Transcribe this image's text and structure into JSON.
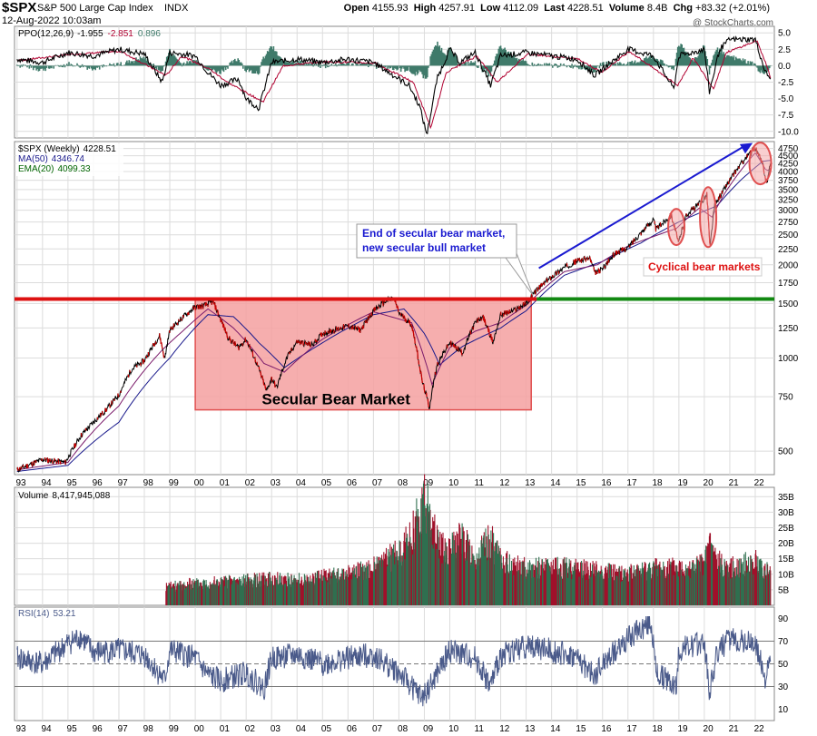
{
  "header": {
    "symbol": "$SPX",
    "name": "S&P 500 Large Cap Index",
    "exchange": "INDX",
    "date": "12-Aug-2022 10:03am",
    "credit": "@ StockCharts.com",
    "quote": {
      "open_label": "Open",
      "open": "4155.93",
      "high_label": "High",
      "high": "4257.91",
      "low_label": "Low",
      "low": "4112.09",
      "last_label": "Last",
      "last": "4228.51",
      "volume_label": "Volume",
      "volume": "8.4B",
      "chg_label": "Chg",
      "chg": "+83.32 (+2.01%)"
    }
  },
  "colors": {
    "price": "#000000",
    "down": "#cc0000",
    "ma50": "#1a1a8c",
    "ema20": "#006400",
    "ppo_line": "#000000",
    "ppo_signal": "#b00030",
    "ppo_hist": "#3f7a6a",
    "resistance": "#dd1111",
    "support": "#118811",
    "zone_fill": "#f4a0a0",
    "zone_edge": "#e05050",
    "arrow": "#1a1ad0",
    "note_blue": "#1a1ad0",
    "note_red": "#dd1111",
    "vol_up": "#2f6f4f",
    "vol_down": "#a0102a",
    "rsi": "#4a5a8a"
  },
  "chart_data": [
    {
      "id": "ppo",
      "type": "line",
      "legend": [
        {
          "text": "PPO(12,26,9)",
          "value": "-1.955",
          "color": "#000000"
        },
        {
          "text": "",
          "value": "-2.851",
          "color": "#b00030"
        },
        {
          "text": "",
          "value": "0.896",
          "color": "#3f7a6a"
        }
      ],
      "yticks": [
        "5.0",
        "2.5",
        "0.0",
        "-2.5",
        "-5.0",
        "-7.5",
        "-10.0"
      ],
      "ylim": [
        -11,
        6
      ],
      "series": [
        {
          "name": "PPO",
          "x": [
            1993,
            1994,
            1995,
            1996,
            1997,
            1998,
            1998.7,
            1999,
            2000,
            2000.5,
            2001,
            2001.7,
            2002,
            2002.5,
            2003,
            2004,
            2005,
            2006,
            2007,
            2007.6,
            2008,
            2008.4,
            2008.8,
            2009.1,
            2009.5,
            2010,
            2010.4,
            2011,
            2011.6,
            2012,
            2013,
            2014,
            2015,
            2015.7,
            2016,
            2017,
            2018,
            2018.8,
            2019,
            2020,
            2020.2,
            2020.6,
            2021,
            2022,
            2022.4,
            2022.6
          ],
          "values": [
            1.0,
            0.5,
            2.0,
            1.5,
            2.5,
            1.8,
            -2.5,
            2.0,
            1.5,
            -1.0,
            -3.0,
            -2.0,
            -5.0,
            -6.5,
            0.5,
            1.0,
            0.5,
            1.0,
            0.5,
            -1.0,
            -2.0,
            -3.0,
            -6.0,
            -10.5,
            -2.0,
            2.5,
            0.5,
            2.0,
            -3.0,
            1.5,
            2.0,
            1.5,
            1.0,
            -1.5,
            -0.5,
            2.5,
            1.5,
            -3.5,
            1.5,
            2.5,
            -4.0,
            2.5,
            4.0,
            4.0,
            -1.0,
            -1.9
          ]
        },
        {
          "name": "Signal",
          "x": [
            1993,
            1995,
            1997,
            1998.8,
            1999.4,
            2000.5,
            2001.2,
            2002.6,
            2003.4,
            2005,
            2007,
            2008.5,
            2009.2,
            2009.8,
            2011,
            2011.8,
            2013,
            2015,
            2015.9,
            2017,
            2018.9,
            2019.5,
            2020.3,
            2020.8,
            2022,
            2022.4,
            2022.6
          ],
          "values": [
            0.8,
            1.7,
            2.2,
            -1.5,
            1.5,
            -0.5,
            -2.5,
            -5.5,
            0.0,
            0.6,
            0.4,
            -2.5,
            -9.5,
            -1.0,
            1.5,
            -2.5,
            1.8,
            1.0,
            -1.0,
            2.2,
            -3.0,
            1.2,
            -3.5,
            2.0,
            3.8,
            0.0,
            -2.85
          ]
        }
      ]
    },
    {
      "id": "price",
      "type": "line",
      "scale": "log",
      "legend": [
        {
          "text": "$SPX (Weekly)",
          "value": "4228.51",
          "color": "#000000"
        },
        {
          "text": "MA(50)",
          "value": "4346.74",
          "color": "#1a1a8c"
        },
        {
          "text": "EMA(20)",
          "value": "4099.33",
          "color": "#006400"
        }
      ],
      "yticks": [
        4750,
        4500,
        4250,
        4000,
        3750,
        3500,
        3250,
        3000,
        2750,
        2500,
        2250,
        2000,
        1750,
        1500,
        1250,
        1000,
        750,
        500
      ],
      "ylim": [
        420,
        5000
      ],
      "x_tick_labels": [
        "93",
        "94",
        "95",
        "96",
        "97",
        "98",
        "99",
        "00",
        "01",
        "02",
        "03",
        "04",
        "05",
        "06",
        "07",
        "08",
        "09",
        "10",
        "11",
        "12",
        "13",
        "14",
        "15",
        "16",
        "17",
        "18",
        "19",
        "20",
        "21",
        "22"
      ],
      "series": [
        {
          "name": "$SPX (Weekly)",
          "x": [
            1993,
            1994,
            1994.9,
            1995.5,
            1996,
            1996.5,
            1997,
            1997.5,
            1998,
            1998.6,
            1998.8,
            1999,
            1999.5,
            2000,
            2000.3,
            2000.7,
            2001,
            2001.3,
            2001.7,
            2002,
            2002.5,
            2002.8,
            2003,
            2003.2,
            2003.6,
            2004,
            2004.6,
            2005,
            2006,
            2006.5,
            2007,
            2007.5,
            2007.8,
            2008,
            2008.5,
            2008.9,
            2009.2,
            2009.5,
            2010,
            2010.5,
            2011,
            2011.3,
            2011.7,
            2012,
            2012.5,
            2013,
            2013.4,
            2014,
            2014.5,
            2015,
            2015.5,
            2015.7,
            2016,
            2016.5,
            2017,
            2018,
            2018.1,
            2018.7,
            2018.98,
            2019.3,
            2019.9,
            2020.1,
            2020.22,
            2020.4,
            2020.9,
            2021.5,
            2022,
            2022.3,
            2022.45,
            2022.6
          ],
          "values": [
            435,
            470,
            460,
            560,
            620,
            680,
            760,
            920,
            980,
            1180,
            990,
            1230,
            1350,
            1460,
            1470,
            1520,
            1330,
            1160,
            1080,
            1150,
            920,
            780,
            860,
            800,
            1000,
            1130,
            1100,
            1200,
            1270,
            1230,
            1420,
            1530,
            1560,
            1400,
            1280,
            850,
            690,
            950,
            1120,
            1040,
            1300,
            1360,
            1120,
            1380,
            1420,
            1500,
            1650,
            1830,
            1960,
            2060,
            2100,
            1880,
            1940,
            2180,
            2270,
            2800,
            2600,
            2900,
            2350,
            2900,
            3200,
            3380,
            2240,
            3100,
            3640,
            4300,
            4780,
            4200,
            3650,
            4230
          ]
        },
        {
          "name": "MA(50)",
          "x": [
            1993,
            1995,
            1997,
            1999,
            2000.5,
            2001.5,
            2002.5,
            2003.5,
            2005,
            2007,
            2008.2,
            2009,
            2009.6,
            2010.5,
            2012,
            2013,
            2014.5,
            2016,
            2017.5,
            2019,
            2020.5,
            2021.5,
            2022.3,
            2022.6
          ],
          "values": [
            430,
            450,
            620,
            1000,
            1380,
            1360,
            1120,
            930,
            1120,
            1380,
            1440,
            1200,
            950,
            1090,
            1250,
            1420,
            1850,
            2050,
            2350,
            2750,
            3100,
            3800,
            4320,
            4347
          ]
        },
        {
          "name": "EMA(20)",
          "x": [
            1993,
            1995,
            1997,
            1998.7,
            1999.5,
            2000.5,
            2001.5,
            2002.7,
            2003.5,
            2005,
            2007,
            2008.5,
            2009.3,
            2010,
            2011,
            2012,
            2013,
            2014.5,
            2015.8,
            2017,
            2018.9,
            2019.8,
            2020.3,
            2020.8,
            2022,
            2022.45,
            2022.6
          ],
          "values": [
            435,
            460,
            700,
            1060,
            1220,
            1440,
            1250,
            960,
            900,
            1150,
            1410,
            1300,
            820,
            1080,
            1220,
            1300,
            1480,
            1900,
            2000,
            2300,
            2620,
            3050,
            2850,
            3400,
            4600,
            4000,
            4099
          ]
        }
      ],
      "annotations": {
        "zone_label": "Secular Bear Market",
        "note_line1": "End of secular bear market,",
        "note_line2": "new secular bull market",
        "cycle_label": "Cyclical bear markets",
        "resistance_value": 1550,
        "zone_x": [
          2000,
          2013.2
        ],
        "zone_y": [
          680,
          1560
        ],
        "arrow_from": [
          2013.5,
          1950
        ],
        "arrow_to": [
          2021.9,
          4950
        ],
        "ellipses": [
          {
            "x": 2018.9,
            "y": 2650
          },
          {
            "x": 2020.15,
            "y": 2850
          },
          {
            "x": 2022.2,
            "y": 4250
          }
        ]
      }
    },
    {
      "id": "volume",
      "type": "bar",
      "legend": [
        {
          "text": "Volume",
          "value": "8,417,945,088",
          "color": "#000000"
        }
      ],
      "yticks": [
        "35B",
        "30B",
        "25B",
        "20B",
        "15B",
        "10B",
        "5B"
      ],
      "ylim": [
        0,
        38
      ],
      "x": [
        1999,
        2000,
        2001,
        2002,
        2003,
        2004,
        2005,
        2006,
        2007,
        2008,
        2008.5,
        2008.8,
        2009,
        2009.3,
        2009.6,
        2010,
        2010.4,
        2011,
        2011.6,
        2012,
        2013,
        2014,
        2015,
        2016,
        2017,
        2018,
        2019,
        2020,
        2020.2,
        2020.5,
        2021,
        2022,
        2022.6
      ],
      "values": [
        6,
        7,
        7.5,
        8,
        8.5,
        8,
        9,
        10,
        12,
        17,
        22,
        30,
        35,
        25,
        20,
        17,
        22,
        15,
        21,
        14,
        12,
        12,
        12,
        11,
        10,
        12,
        12,
        13,
        20,
        14,
        12,
        14,
        10
      ]
    },
    {
      "id": "rsi",
      "type": "line",
      "legend": [
        {
          "text": "RSI(14)",
          "value": "53.21",
          "color": "#4a5a8a"
        }
      ],
      "yticks": [
        90,
        70,
        50,
        30,
        10
      ],
      "ylim": [
        0,
        100
      ],
      "ref_lines": [
        70,
        50,
        30
      ],
      "x": [
        1993,
        1994,
        1995,
        1995.5,
        1996,
        1997,
        1998,
        1998.8,
        1999,
        2000,
        2000.5,
        2001,
        2002,
        2002.7,
        2003,
        2004,
        2005,
        2006,
        2007,
        2008,
        2008.9,
        2009.3,
        2010,
        2011,
        2011.6,
        2012,
        2013,
        2014,
        2015,
        2015.7,
        2016,
        2017,
        2017.9,
        2018.1,
        2018.9,
        2019,
        2020,
        2020.2,
        2020.5,
        2021,
        2022,
        2022.4,
        2022.6
      ],
      "values": [
        55,
        50,
        68,
        74,
        60,
        62,
        58,
        35,
        62,
        55,
        40,
        35,
        42,
        28,
        55,
        58,
        50,
        55,
        58,
        42,
        20,
        32,
        62,
        55,
        30,
        58,
        66,
        62,
        55,
        38,
        50,
        72,
        88,
        42,
        30,
        62,
        70,
        25,
        60,
        72,
        68,
        38,
        53
      ]
    }
  ]
}
